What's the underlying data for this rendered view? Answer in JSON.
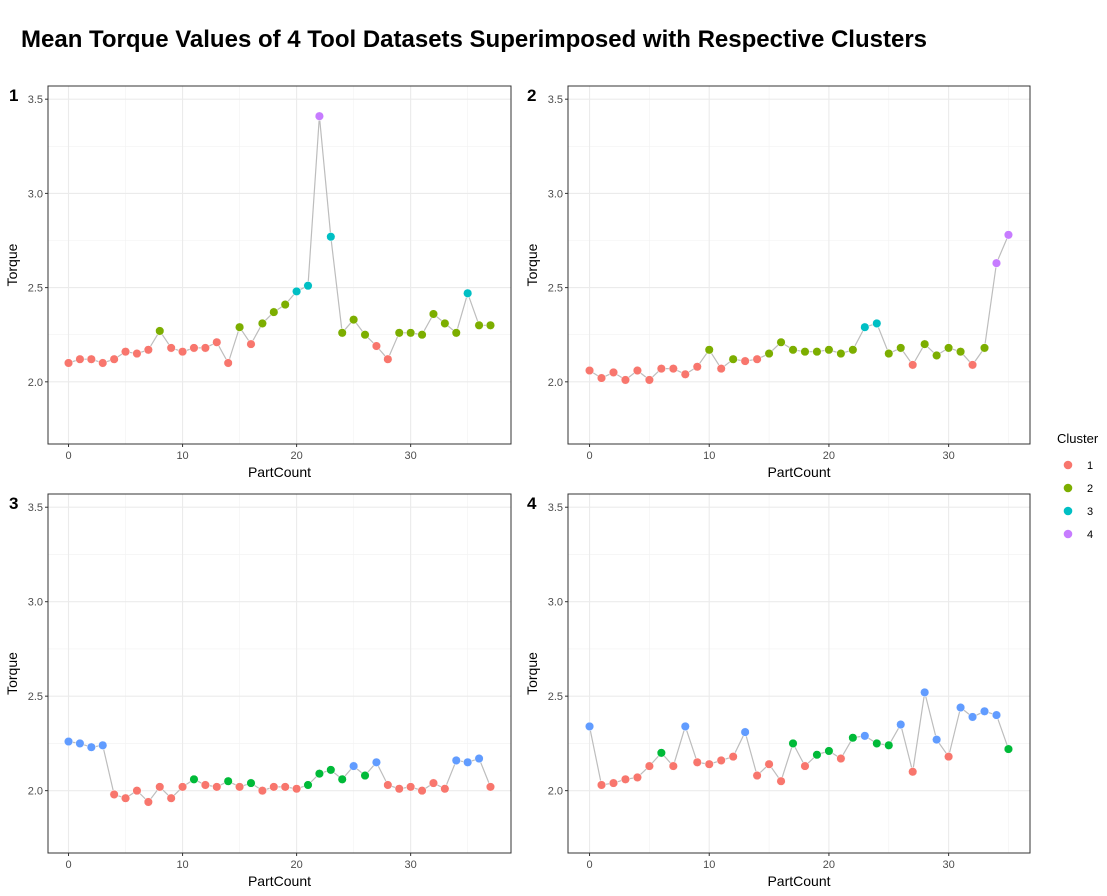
{
  "chart_data": {
    "type": "scatter",
    "title": "Mean Torque Values of 4 Tool Datasets Superimposed with Respective Clusters",
    "xlabel": "PartCount",
    "ylabel": "Torque",
    "ylim": [
      1.67,
      3.57
    ],
    "y_ticks": [
      "2.0",
      "2.5",
      "3.0",
      "3.5"
    ],
    "y_tick_values": [
      2.0,
      2.5,
      3.0,
      3.5
    ],
    "grid": true,
    "legend": {
      "title": "Cluster",
      "position": "right",
      "entries": [
        {
          "label": "1",
          "color": "#F8766D"
        },
        {
          "label": "2",
          "color": "#7CAE00"
        },
        {
          "label": "3",
          "color": "#00BFC4"
        },
        {
          "label": "4",
          "color": "#C77CFF"
        }
      ]
    },
    "line_color": "#BDBDBD",
    "panels": [
      {
        "label": "1",
        "xlim": [
          -1.8,
          38.8
        ],
        "x_ticks": [
          "0",
          "10",
          "20",
          "30"
        ],
        "x_tick_values": [
          0,
          10,
          20,
          30
        ],
        "points": [
          {
            "x": 0,
            "y": 2.1,
            "color": "#F8766D"
          },
          {
            "x": 1,
            "y": 2.12,
            "color": "#F8766D"
          },
          {
            "x": 2,
            "y": 2.12,
            "color": "#F8766D"
          },
          {
            "x": 3,
            "y": 2.1,
            "color": "#F8766D"
          },
          {
            "x": 4,
            "y": 2.12,
            "color": "#F8766D"
          },
          {
            "x": 5,
            "y": 2.16,
            "color": "#F8766D"
          },
          {
            "x": 6,
            "y": 2.15,
            "color": "#F8766D"
          },
          {
            "x": 7,
            "y": 2.17,
            "color": "#F8766D"
          },
          {
            "x": 8,
            "y": 2.27,
            "color": "#7CAE00"
          },
          {
            "x": 9,
            "y": 2.18,
            "color": "#F8766D"
          },
          {
            "x": 10,
            "y": 2.16,
            "color": "#F8766D"
          },
          {
            "x": 11,
            "y": 2.18,
            "color": "#F8766D"
          },
          {
            "x": 12,
            "y": 2.18,
            "color": "#F8766D"
          },
          {
            "x": 13,
            "y": 2.21,
            "color": "#F8766D"
          },
          {
            "x": 14,
            "y": 2.1,
            "color": "#F8766D"
          },
          {
            "x": 15,
            "y": 2.29,
            "color": "#7CAE00"
          },
          {
            "x": 16,
            "y": 2.2,
            "color": "#F8766D"
          },
          {
            "x": 17,
            "y": 2.31,
            "color": "#7CAE00"
          },
          {
            "x": 18,
            "y": 2.37,
            "color": "#7CAE00"
          },
          {
            "x": 19,
            "y": 2.41,
            "color": "#7CAE00"
          },
          {
            "x": 20,
            "y": 2.48,
            "color": "#00BFC4"
          },
          {
            "x": 21,
            "y": 2.51,
            "color": "#00BFC4"
          },
          {
            "x": 22,
            "y": 3.41,
            "color": "#C77CFF"
          },
          {
            "x": 23,
            "y": 2.77,
            "color": "#00BFC4"
          },
          {
            "x": 24,
            "y": 2.26,
            "color": "#7CAE00"
          },
          {
            "x": 25,
            "y": 2.33,
            "color": "#7CAE00"
          },
          {
            "x": 26,
            "y": 2.25,
            "color": "#7CAE00"
          },
          {
            "x": 27,
            "y": 2.19,
            "color": "#F8766D"
          },
          {
            "x": 28,
            "y": 2.12,
            "color": "#F8766D"
          },
          {
            "x": 29,
            "y": 2.26,
            "color": "#7CAE00"
          },
          {
            "x": 30,
            "y": 2.26,
            "color": "#7CAE00"
          },
          {
            "x": 31,
            "y": 2.25,
            "color": "#7CAE00"
          },
          {
            "x": 32,
            "y": 2.36,
            "color": "#7CAE00"
          },
          {
            "x": 33,
            "y": 2.31,
            "color": "#7CAE00"
          },
          {
            "x": 34,
            "y": 2.26,
            "color": "#7CAE00"
          },
          {
            "x": 35,
            "y": 2.47,
            "color": "#00BFC4"
          },
          {
            "x": 36,
            "y": 2.3,
            "color": "#7CAE00"
          },
          {
            "x": 37,
            "y": 2.3,
            "color": "#7CAE00"
          }
        ]
      },
      {
        "label": "2",
        "xlim": [
          -1.8,
          36.8
        ],
        "x_ticks": [
          "0",
          "10",
          "20",
          "30"
        ],
        "x_tick_values": [
          0,
          10,
          20,
          30
        ],
        "points": [
          {
            "x": 0,
            "y": 2.06,
            "color": "#F8766D"
          },
          {
            "x": 1,
            "y": 2.02,
            "color": "#F8766D"
          },
          {
            "x": 2,
            "y": 2.05,
            "color": "#F8766D"
          },
          {
            "x": 3,
            "y": 2.01,
            "color": "#F8766D"
          },
          {
            "x": 4,
            "y": 2.06,
            "color": "#F8766D"
          },
          {
            "x": 5,
            "y": 2.01,
            "color": "#F8766D"
          },
          {
            "x": 6,
            "y": 2.07,
            "color": "#F8766D"
          },
          {
            "x": 7,
            "y": 2.07,
            "color": "#F8766D"
          },
          {
            "x": 8,
            "y": 2.04,
            "color": "#F8766D"
          },
          {
            "x": 9,
            "y": 2.08,
            "color": "#F8766D"
          },
          {
            "x": 10,
            "y": 2.17,
            "color": "#7CAE00"
          },
          {
            "x": 11,
            "y": 2.07,
            "color": "#F8766D"
          },
          {
            "x": 12,
            "y": 2.12,
            "color": "#7CAE00"
          },
          {
            "x": 13,
            "y": 2.11,
            "color": "#F8766D"
          },
          {
            "x": 14,
            "y": 2.12,
            "color": "#F8766D"
          },
          {
            "x": 15,
            "y": 2.15,
            "color": "#7CAE00"
          },
          {
            "x": 16,
            "y": 2.21,
            "color": "#7CAE00"
          },
          {
            "x": 17,
            "y": 2.17,
            "color": "#7CAE00"
          },
          {
            "x": 18,
            "y": 2.16,
            "color": "#7CAE00"
          },
          {
            "x": 19,
            "y": 2.16,
            "color": "#7CAE00"
          },
          {
            "x": 20,
            "y": 2.17,
            "color": "#7CAE00"
          },
          {
            "x": 21,
            "y": 2.15,
            "color": "#7CAE00"
          },
          {
            "x": 22,
            "y": 2.17,
            "color": "#7CAE00"
          },
          {
            "x": 23,
            "y": 2.29,
            "color": "#00BFC4"
          },
          {
            "x": 24,
            "y": 2.31,
            "color": "#00BFC4"
          },
          {
            "x": 25,
            "y": 2.15,
            "color": "#7CAE00"
          },
          {
            "x": 26,
            "y": 2.18,
            "color": "#7CAE00"
          },
          {
            "x": 27,
            "y": 2.09,
            "color": "#F8766D"
          },
          {
            "x": 28,
            "y": 2.2,
            "color": "#7CAE00"
          },
          {
            "x": 29,
            "y": 2.14,
            "color": "#7CAE00"
          },
          {
            "x": 30,
            "y": 2.18,
            "color": "#7CAE00"
          },
          {
            "x": 31,
            "y": 2.16,
            "color": "#7CAE00"
          },
          {
            "x": 32,
            "y": 2.09,
            "color": "#F8766D"
          },
          {
            "x": 33,
            "y": 2.18,
            "color": "#7CAE00"
          },
          {
            "x": 34,
            "y": 2.63,
            "color": "#C77CFF"
          },
          {
            "x": 35,
            "y": 2.78,
            "color": "#C77CFF"
          }
        ]
      },
      {
        "label": "3",
        "xlim": [
          -1.8,
          38.8
        ],
        "x_ticks": [
          "0",
          "10",
          "20",
          "30"
        ],
        "x_tick_values": [
          0,
          10,
          20,
          30
        ],
        "points": [
          {
            "x": 0,
            "y": 2.26,
            "color": "#619CFF"
          },
          {
            "x": 1,
            "y": 2.25,
            "color": "#619CFF"
          },
          {
            "x": 2,
            "y": 2.23,
            "color": "#619CFF"
          },
          {
            "x": 3,
            "y": 2.24,
            "color": "#619CFF"
          },
          {
            "x": 4,
            "y": 1.98,
            "color": "#F8766D"
          },
          {
            "x": 5,
            "y": 1.96,
            "color": "#F8766D"
          },
          {
            "x": 6,
            "y": 2.0,
            "color": "#F8766D"
          },
          {
            "x": 7,
            "y": 1.94,
            "color": "#F8766D"
          },
          {
            "x": 8,
            "y": 2.02,
            "color": "#F8766D"
          },
          {
            "x": 9,
            "y": 1.96,
            "color": "#F8766D"
          },
          {
            "x": 10,
            "y": 2.02,
            "color": "#F8766D"
          },
          {
            "x": 11,
            "y": 2.06,
            "color": "#00BA38"
          },
          {
            "x": 12,
            "y": 2.03,
            "color": "#F8766D"
          },
          {
            "x": 13,
            "y": 2.02,
            "color": "#F8766D"
          },
          {
            "x": 14,
            "y": 2.05,
            "color": "#00BA38"
          },
          {
            "x": 15,
            "y": 2.02,
            "color": "#F8766D"
          },
          {
            "x": 16,
            "y": 2.04,
            "color": "#00BA38"
          },
          {
            "x": 17,
            "y": 2.0,
            "color": "#F8766D"
          },
          {
            "x": 18,
            "y": 2.02,
            "color": "#F8766D"
          },
          {
            "x": 19,
            "y": 2.02,
            "color": "#F8766D"
          },
          {
            "x": 20,
            "y": 2.01,
            "color": "#F8766D"
          },
          {
            "x": 21,
            "y": 2.03,
            "color": "#00BA38"
          },
          {
            "x": 22,
            "y": 2.09,
            "color": "#00BA38"
          },
          {
            "x": 23,
            "y": 2.11,
            "color": "#00BA38"
          },
          {
            "x": 24,
            "y": 2.06,
            "color": "#00BA38"
          },
          {
            "x": 25,
            "y": 2.13,
            "color": "#619CFF"
          },
          {
            "x": 26,
            "y": 2.08,
            "color": "#00BA38"
          },
          {
            "x": 27,
            "y": 2.15,
            "color": "#619CFF"
          },
          {
            "x": 28,
            "y": 2.03,
            "color": "#F8766D"
          },
          {
            "x": 29,
            "y": 2.01,
            "color": "#F8766D"
          },
          {
            "x": 30,
            "y": 2.02,
            "color": "#F8766D"
          },
          {
            "x": 31,
            "y": 2.0,
            "color": "#F8766D"
          },
          {
            "x": 32,
            "y": 2.04,
            "color": "#F8766D"
          },
          {
            "x": 33,
            "y": 2.01,
            "color": "#F8766D"
          },
          {
            "x": 34,
            "y": 2.16,
            "color": "#619CFF"
          },
          {
            "x": 35,
            "y": 2.15,
            "color": "#619CFF"
          },
          {
            "x": 36,
            "y": 2.17,
            "color": "#619CFF"
          },
          {
            "x": 37,
            "y": 2.02,
            "color": "#F8766D"
          }
        ]
      },
      {
        "label": "4",
        "xlim": [
          -1.8,
          36.8
        ],
        "x_ticks": [
          "0",
          "10",
          "20",
          "30"
        ],
        "x_tick_values": [
          0,
          10,
          20,
          30
        ],
        "points": [
          {
            "x": 0,
            "y": 2.34,
            "color": "#619CFF"
          },
          {
            "x": 1,
            "y": 2.03,
            "color": "#F8766D"
          },
          {
            "x": 2,
            "y": 2.04,
            "color": "#F8766D"
          },
          {
            "x": 3,
            "y": 2.06,
            "color": "#F8766D"
          },
          {
            "x": 4,
            "y": 2.07,
            "color": "#F8766D"
          },
          {
            "x": 5,
            "y": 2.13,
            "color": "#F8766D"
          },
          {
            "x": 6,
            "y": 2.2,
            "color": "#00BA38"
          },
          {
            "x": 7,
            "y": 2.13,
            "color": "#F8766D"
          },
          {
            "x": 8,
            "y": 2.34,
            "color": "#619CFF"
          },
          {
            "x": 9,
            "y": 2.15,
            "color": "#F8766D"
          },
          {
            "x": 10,
            "y": 2.14,
            "color": "#F8766D"
          },
          {
            "x": 11,
            "y": 2.16,
            "color": "#F8766D"
          },
          {
            "x": 12,
            "y": 2.18,
            "color": "#F8766D"
          },
          {
            "x": 13,
            "y": 2.31,
            "color": "#619CFF"
          },
          {
            "x": 14,
            "y": 2.08,
            "color": "#F8766D"
          },
          {
            "x": 15,
            "y": 2.14,
            "color": "#F8766D"
          },
          {
            "x": 16,
            "y": 2.05,
            "color": "#F8766D"
          },
          {
            "x": 17,
            "y": 2.25,
            "color": "#00BA38"
          },
          {
            "x": 18,
            "y": 2.13,
            "color": "#F8766D"
          },
          {
            "x": 19,
            "y": 2.19,
            "color": "#00BA38"
          },
          {
            "x": 20,
            "y": 2.21,
            "color": "#00BA38"
          },
          {
            "x": 21,
            "y": 2.17,
            "color": "#F8766D"
          },
          {
            "x": 22,
            "y": 2.28,
            "color": "#00BA38"
          },
          {
            "x": 23,
            "y": 2.29,
            "color": "#619CFF"
          },
          {
            "x": 24,
            "y": 2.25,
            "color": "#00BA38"
          },
          {
            "x": 25,
            "y": 2.24,
            "color": "#00BA38"
          },
          {
            "x": 26,
            "y": 2.35,
            "color": "#619CFF"
          },
          {
            "x": 27,
            "y": 2.1,
            "color": "#F8766D"
          },
          {
            "x": 28,
            "y": 2.52,
            "color": "#619CFF"
          },
          {
            "x": 29,
            "y": 2.27,
            "color": "#619CFF"
          },
          {
            "x": 30,
            "y": 2.18,
            "color": "#F8766D"
          },
          {
            "x": 31,
            "y": 2.44,
            "color": "#619CFF"
          },
          {
            "x": 32,
            "y": 2.39,
            "color": "#619CFF"
          },
          {
            "x": 33,
            "y": 2.42,
            "color": "#619CFF"
          },
          {
            "x": 34,
            "y": 2.4,
            "color": "#619CFF"
          },
          {
            "x": 35,
            "y": 2.22,
            "color": "#00BA38"
          }
        ]
      }
    ]
  }
}
